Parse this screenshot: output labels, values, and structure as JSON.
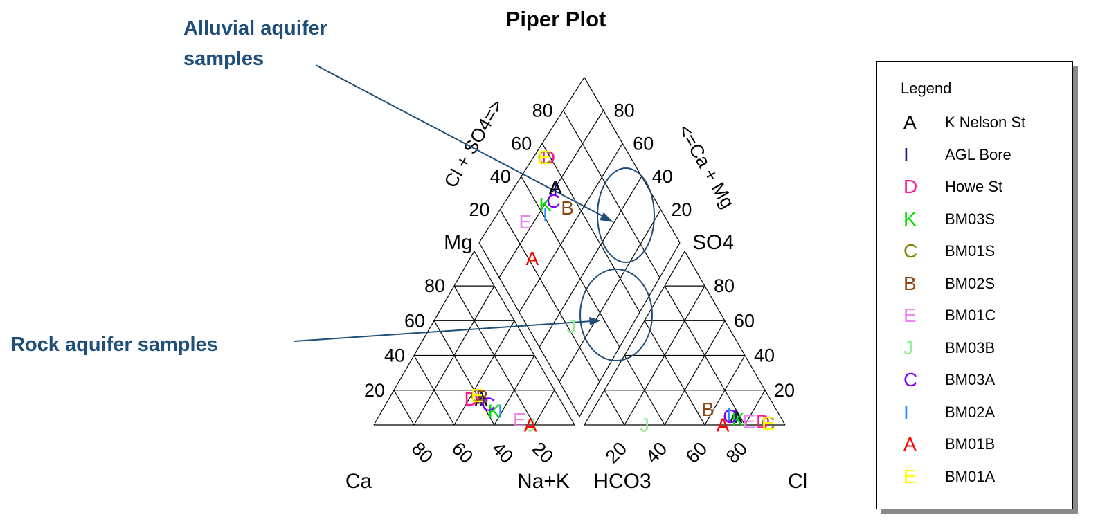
{
  "chart_data": {
    "type": "scatter",
    "subtype": "piper-diagram",
    "title": "Piper Plot",
    "axis_labels": {
      "cation_left": "Ca",
      "cation_right": "Na+K",
      "cation_top": "Mg",
      "anion_left": "HCO3",
      "anion_right": "Cl",
      "anion_top": "SO4",
      "diamond_left": "Cl + SO4=>",
      "diamond_right": "<=Ca + Mg"
    },
    "tick_labels": [
      "20",
      "40",
      "60",
      "80"
    ],
    "annotations": [
      {
        "text_lines": [
          "Alluvial aquifer",
          "samples"
        ]
      },
      {
        "text_lines": [
          "Rock aquifer samples"
        ]
      }
    ],
    "legend_title": "Legend",
    "series": [
      {
        "symbol": "A",
        "name": "K Nelson St",
        "color": "#000000",
        "cation": {
          "ca": 39,
          "mg": 15,
          "nak": 46
        },
        "anion": {
          "hco3": 22,
          "so4": 5,
          "cl": 73
        }
      },
      {
        "symbol": "I",
        "name": "AGL Bore",
        "color": "#1a1a8c",
        "cation": {
          "ca": 39,
          "mg": 15,
          "nak": 46
        },
        "anion": {
          "hco3": 22,
          "so4": 5,
          "cl": 73
        }
      },
      {
        "symbol": "D",
        "name": "Howe St",
        "color": "#ff1493",
        "cation": {
          "ca": 44,
          "mg": 15,
          "nak": 41
        },
        "anion": {
          "hco3": 10,
          "so4": 2,
          "cl": 88
        }
      },
      {
        "symbol": "K",
        "name": "BM03S",
        "color": "#00e000",
        "cation": {
          "ca": 36,
          "mg": 8,
          "nak": 56
        },
        "anion": {
          "hco3": 22,
          "so4": 3,
          "cl": 75
        }
      },
      {
        "symbol": "C",
        "name": "BM01S",
        "color": "#808000",
        "cation": {
          "ca": 40,
          "mg": 17,
          "nak": 43
        },
        "anion": {
          "hco3": 8,
          "so4": 1,
          "cl": 91
        }
      },
      {
        "symbol": "B",
        "name": "BM02S",
        "color": "#8b4513",
        "cation": {
          "ca": 38,
          "mg": 16,
          "nak": 46
        },
        "anion": {
          "hco3": 34,
          "so4": 9,
          "cl": 57
        }
      },
      {
        "symbol": "E",
        "name": "BM01C",
        "color": "#ee82ee",
        "cation": {
          "ca": 26,
          "mg": 3,
          "nak": 71
        },
        "anion": {
          "hco3": 17,
          "so4": 2,
          "cl": 81
        }
      },
      {
        "symbol": "J",
        "name": "BM03B",
        "color": "#90ee90",
        "cation": {
          "ca": 22,
          "mg": 0,
          "nak": 78
        },
        "anion": {
          "hco3": 70,
          "so4": 0,
          "cl": 30
        }
      },
      {
        "symbol": "C",
        "name": "BM03A",
        "color": "#8000ff",
        "cation": {
          "ca": 37,
          "mg": 12,
          "nak": 51
        },
        "anion": {
          "hco3": 25,
          "so4": 5,
          "cl": 70
        }
      },
      {
        "symbol": "I",
        "name": "BM02A",
        "color": "#1e90ff",
        "cation": {
          "ca": 33,
          "mg": 8,
          "nak": 59
        },
        "anion": {
          "hco3": 25,
          "so4": 6,
          "cl": 69
        }
      },
      {
        "symbol": "A",
        "name": "BM01B",
        "color": "#ff0000",
        "cation": {
          "ca": 22,
          "mg": 0,
          "nak": 78
        },
        "anion": {
          "hco3": 31,
          "so4": 0,
          "cl": 69
        }
      },
      {
        "symbol": "E",
        "name": "BM01A",
        "color": "#ffff00",
        "cation": {
          "ca": 40,
          "mg": 17,
          "nak": 43
        },
        "anion": {
          "hco3": 8,
          "so4": 1,
          "cl": 91
        }
      }
    ]
  }
}
